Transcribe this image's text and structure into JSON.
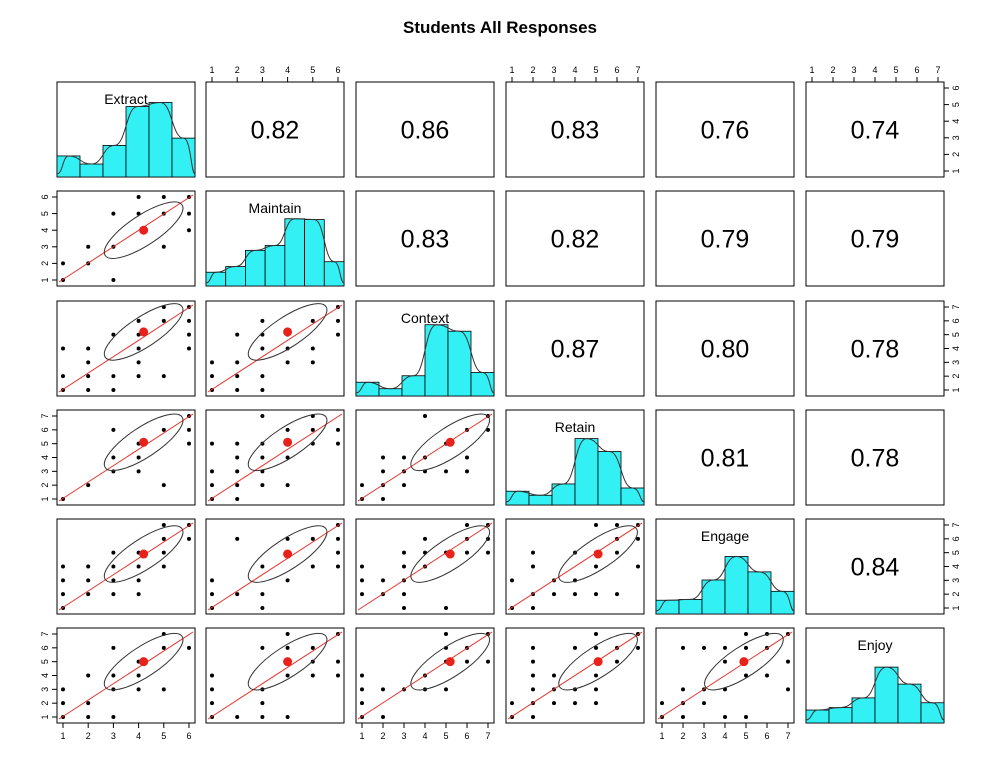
{
  "chart_data": {
    "type": "scatter",
    "title": "Students All Responses",
    "variables": [
      {
        "name": "Extract",
        "range": [
          1,
          6
        ],
        "ticks": [
          1,
          2,
          3,
          4,
          5,
          6
        ],
        "mean": 4.2,
        "hist": [
          0.26,
          0.16,
          0.39,
          0.87,
          0.92,
          0.48
        ]
      },
      {
        "name": "Maintain",
        "range": [
          1,
          6
        ],
        "ticks": [
          1,
          2,
          3,
          4,
          5,
          6
        ],
        "mean": 4.0,
        "hist": [
          0.17,
          0.24,
          0.44,
          0.5,
          0.83,
          0.82,
          0.3
        ]
      },
      {
        "name": "Context",
        "range": [
          1,
          7
        ],
        "ticks": [
          1,
          2,
          3,
          4,
          5,
          6,
          7
        ],
        "mean": 5.2,
        "hist": [
          0.17,
          0.09,
          0.25,
          0.88,
          0.8,
          0.29
        ]
      },
      {
        "name": "Retain",
        "range": [
          1,
          7
        ],
        "ticks": [
          1,
          2,
          3,
          4,
          5,
          6,
          7
        ],
        "mean": 5.1,
        "hist": [
          0.17,
          0.12,
          0.26,
          0.82,
          0.66,
          0.21
        ]
      },
      {
        "name": "Engage",
        "range": [
          1,
          7
        ],
        "ticks": [
          1,
          2,
          3,
          4,
          5,
          6,
          7
        ],
        "mean": 4.9,
        "hist": [
          0.17,
          0.18,
          0.42,
          0.71,
          0.52,
          0.28
        ]
      },
      {
        "name": "Enjoy",
        "range": [
          1,
          7
        ],
        "ticks": [
          1,
          2,
          3,
          4,
          5,
          6,
          7
        ],
        "mean": 5.0,
        "hist": [
          0.16,
          0.19,
          0.31,
          0.69,
          0.48,
          0.25
        ]
      }
    ],
    "correlations": [
      [
        "",
        "0.82",
        "0.86",
        "0.83",
        "0.76",
        "0.74"
      ],
      [
        "",
        "",
        "0.83",
        "0.82",
        "0.79",
        "0.79"
      ],
      [
        "",
        "",
        "",
        "0.87",
        "0.80",
        "0.78"
      ],
      [
        "",
        "",
        "",
        "",
        "0.81",
        "0.78"
      ],
      [
        "",
        "",
        "",
        "",
        "",
        "0.84"
      ],
      [
        "",
        "",
        "",
        "",
        "",
        ""
      ]
    ],
    "grid": false
  }
}
